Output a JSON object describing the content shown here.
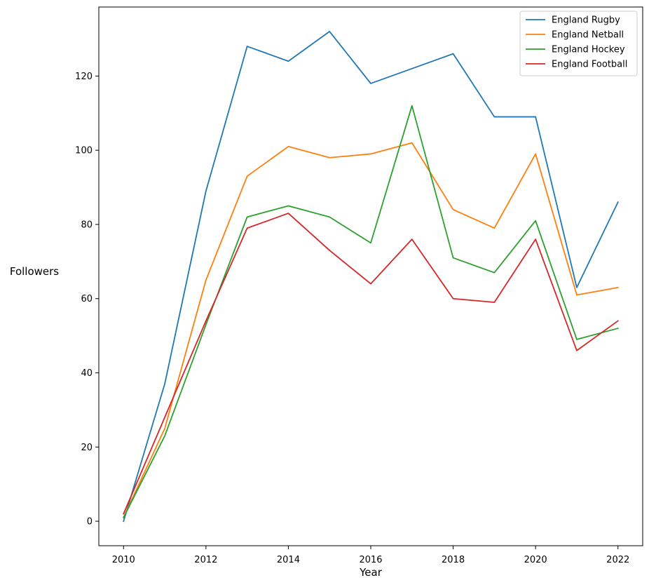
{
  "chart_data": {
    "type": "line",
    "title": "",
    "xlabel": "Year",
    "ylabel": "Followers",
    "x": [
      2010,
      2011,
      2012,
      2013,
      2014,
      2015,
      2016,
      2017,
      2018,
      2019,
      2020,
      2021,
      2022
    ],
    "xlim": [
      2009.4,
      2022.6
    ],
    "ylim": [
      -6.6,
      138.6
    ],
    "xticks": [
      2010,
      2012,
      2014,
      2016,
      2018,
      2020,
      2022
    ],
    "yticks": [
      0,
      20,
      40,
      60,
      80,
      100,
      120
    ],
    "grid": false,
    "legend_position": "top-right",
    "series": [
      {
        "name": "England Rugby",
        "color": "#1f77b4",
        "values": [
          0,
          37,
          89,
          128,
          124,
          132,
          118,
          122,
          126,
          109,
          109,
          63,
          86
        ]
      },
      {
        "name": "England Netball",
        "color": "#ff7f0e",
        "values": [
          1,
          25,
          65,
          93,
          101,
          98,
          99,
          102,
          84,
          79,
          99,
          61,
          63
        ]
      },
      {
        "name": "England Hockey",
        "color": "#2ca02c",
        "values": [
          1,
          23,
          53,
          82,
          85,
          82,
          75,
          112,
          71,
          67,
          81,
          49,
          52
        ]
      },
      {
        "name": "England Football",
        "color": "#d62728",
        "values": [
          2,
          28,
          54,
          79,
          83,
          73,
          64,
          76,
          60,
          59,
          76,
          46,
          54
        ]
      }
    ]
  }
}
